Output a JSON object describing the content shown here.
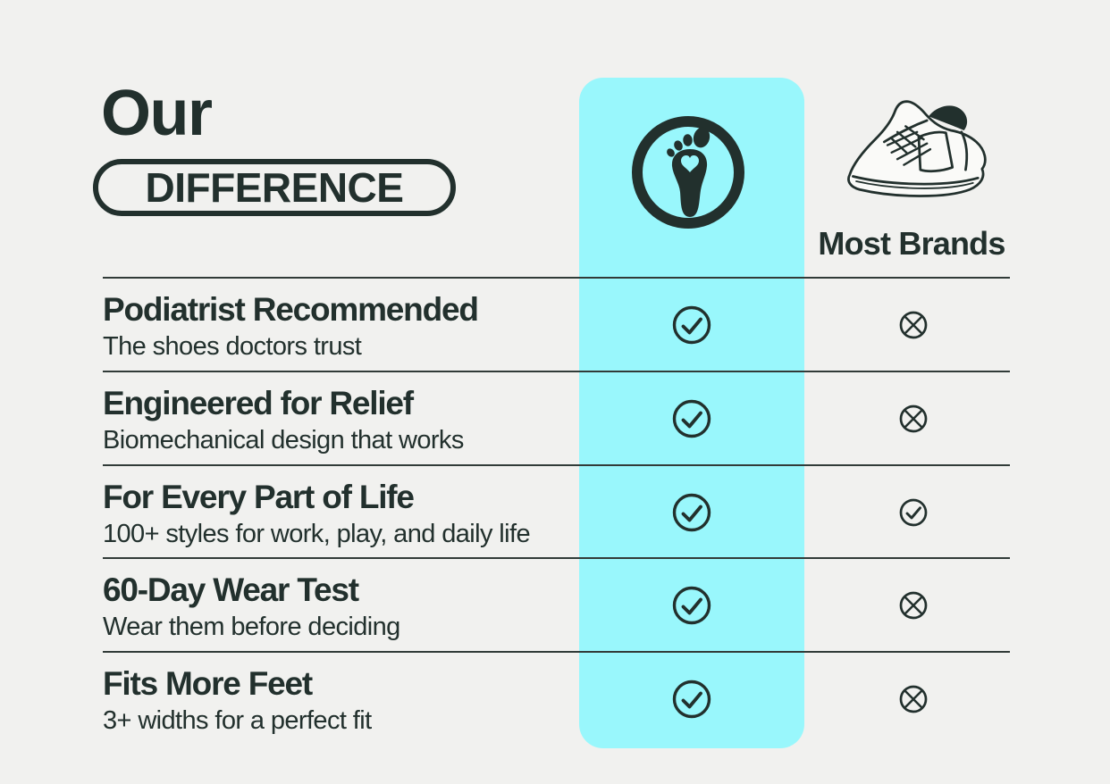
{
  "colors": {
    "background": "#f1f1ef",
    "ink": "#22302d",
    "accent": "#99f7fc",
    "rule": "#313b38"
  },
  "header": {
    "title_top": "Our",
    "title_badge": "DIFFERENCE",
    "our_column_icon": "footprint-heart-logo",
    "brands_column_icon": "sneaker-line-art",
    "brands_label": "Most Brands"
  },
  "comparison": {
    "rows": [
      {
        "title": "Podiatrist Recommended",
        "subtitle": "The shoes doctors trust",
        "our": "check",
        "brands": "cross"
      },
      {
        "title": "Engineered for Relief",
        "subtitle": "Biomechanical design that works",
        "our": "check",
        "brands": "cross"
      },
      {
        "title": "For Every Part of Life",
        "subtitle": "100+ styles for work, play, and daily life",
        "our": "check",
        "brands": "check"
      },
      {
        "title": "60-Day Wear Test",
        "subtitle": "Wear them before deciding",
        "our": "check",
        "brands": "cross"
      },
      {
        "title": "Fits More Feet",
        "subtitle": "3+ widths for a perfect fit",
        "our": "check",
        "brands": "cross"
      }
    ],
    "icon_meaning": {
      "check": "included",
      "cross": "not-included"
    }
  }
}
